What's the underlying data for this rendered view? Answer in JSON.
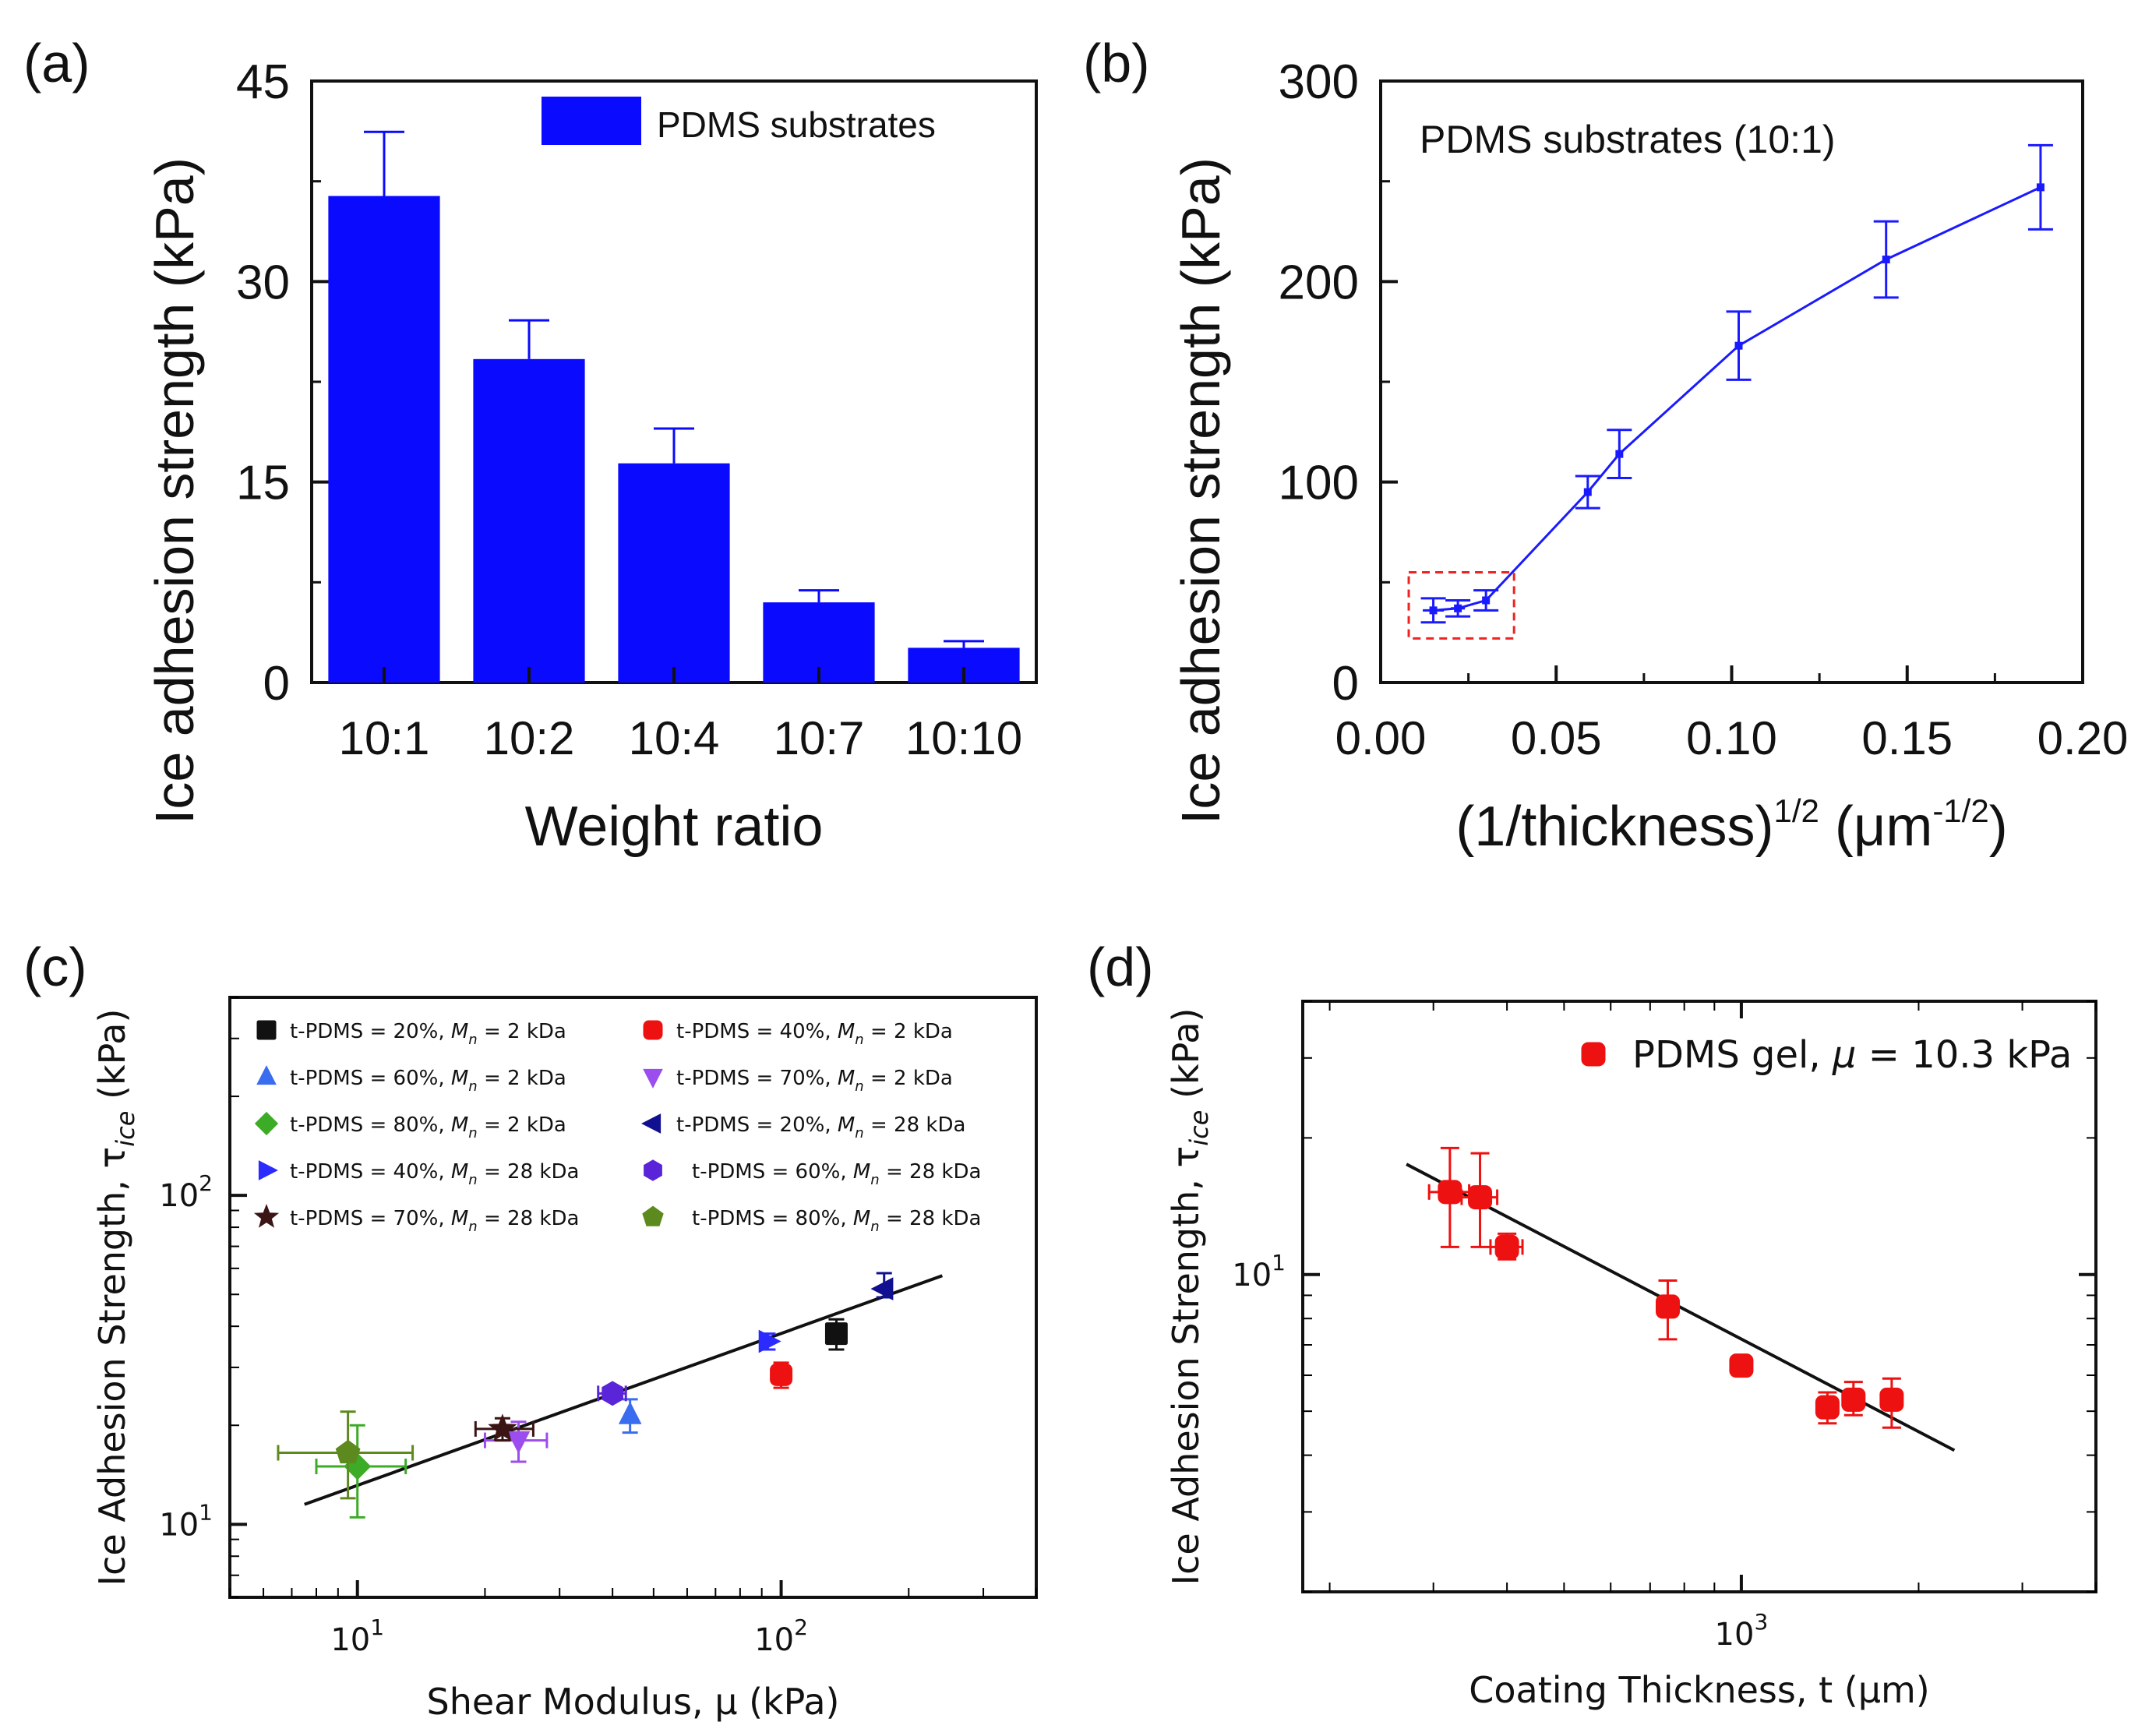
{
  "figure": {
    "panels": [
      "(a)",
      "(b)",
      "(c)",
      "(d)"
    ]
  },
  "chart_data": [
    {
      "id": "a",
      "panel_label": "(a)",
      "type": "bar",
      "title": "",
      "xlabel": "Weight ratio",
      "ylabel": "Ice adhesion strength (kPa)",
      "categories": [
        "10:1",
        "10:2",
        "10:4",
        "10:7",
        "10:10"
      ],
      "values": [
        36.4,
        24.2,
        16.4,
        6.0,
        2.6
      ],
      "errors": [
        4.8,
        2.9,
        2.6,
        0.9,
        0.5
      ],
      "ylim": [
        0,
        45
      ],
      "yticks": [
        0,
        15,
        30,
        45
      ],
      "legend": "PDMS substrates",
      "legend_position": "top-right",
      "color": "#0a0aff"
    },
    {
      "id": "b",
      "panel_label": "(b)",
      "type": "line",
      "title": "",
      "annotation": "PDMS substrates (10:1)",
      "xlabel": "(1/thickness)",
      "xlabel_superscript": "1/2",
      "xlabel_unit": "(μm",
      "xlabel_unit_superscript": "-1/2",
      "xlabel_close": ")",
      "ylabel": "Ice adhesion strength (kPa)",
      "x": [
        0.015,
        0.022,
        0.03,
        0.059,
        0.068,
        0.102,
        0.144,
        0.188
      ],
      "y": [
        36,
        37,
        41,
        95,
        114,
        168,
        211,
        247
      ],
      "yerr": [
        6,
        4,
        5,
        8,
        12,
        17,
        19,
        21
      ],
      "xerr": [
        0.003,
        0.002,
        0.0,
        0.0,
        0.0,
        0.0,
        0.0,
        0.0
      ],
      "xlim": [
        0.0,
        0.2
      ],
      "ylim": [
        0,
        300
      ],
      "xticks": [
        "0.00",
        "0.05",
        "0.10",
        "0.15",
        "0.20"
      ],
      "yticks": [
        0,
        100,
        200,
        300
      ],
      "highlight_box": {
        "x": [
          0.008,
          0.038
        ],
        "y": [
          22,
          55
        ]
      },
      "color": "#1a1aff"
    },
    {
      "id": "c",
      "panel_label": "(c)",
      "type": "scatter",
      "scale": "log-log",
      "xlabel": "Shear Modulus, μ (kPa)",
      "ylabel": "Ice Adhesion Strength, τ",
      "ylabel_sub": "ice",
      "ylabel_unit": " (kPa)",
      "xlim": [
        5,
        400
      ],
      "ylim": [
        6,
        400
      ],
      "xticks": [
        {
          "value": 10,
          "base": "10",
          "exp": "1"
        },
        {
          "value": 100,
          "base": "10",
          "exp": "2"
        }
      ],
      "yticks": [
        {
          "value": 10,
          "base": "10",
          "exp": "1"
        },
        {
          "value": 100,
          "base": "10",
          "exp": "2"
        }
      ],
      "fit_line": {
        "x": [
          7.5,
          240
        ],
        "y": [
          11.5,
          57
        ]
      },
      "series": [
        {
          "name": "t-PDMS = 20%, Mn = 2 kDa",
          "lead": "t-PDMS = 20%, ",
          "var": "M",
          "sub": "n",
          "tail": " = 2 kDa",
          "marker": "square",
          "color": "#111111",
          "x": 135,
          "y": 38,
          "yerr_lo": 34,
          "yerr_hi": 42,
          "xerr_lo": 135,
          "xerr_hi": 135
        },
        {
          "name": "t-PDMS = 40%, Mn = 2 kDa",
          "lead": "t-PDMS = 40%, ",
          "var": "M",
          "sub": "n",
          "tail": " = 2 kDa",
          "marker": "circle",
          "color": "#ee1111",
          "x": 100,
          "y": 28.5,
          "yerr_lo": 26,
          "yerr_hi": 31,
          "xerr_lo": 100,
          "xerr_hi": 100
        },
        {
          "name": "t-PDMS = 60%, Mn = 2 kDa",
          "lead": "t-PDMS = 60%, ",
          "var": "M",
          "sub": "n",
          "tail": " = 2 kDa",
          "marker": "triangle-up",
          "color": "#3a6cf0",
          "x": 44,
          "y": 21.5,
          "yerr_lo": 19,
          "yerr_hi": 24,
          "xerr_lo": 44,
          "xerr_hi": 44
        },
        {
          "name": "t-PDMS = 70%, Mn = 2 kDa",
          "lead": "t-PDMS = 70%, ",
          "var": "M",
          "sub": "n",
          "tail": " = 2 kDa",
          "marker": "triangle-down",
          "color": "#9b4dee",
          "x": 24,
          "y": 18,
          "yerr_lo": 15.5,
          "yerr_hi": 20.5,
          "xerr_lo": 20,
          "xerr_hi": 28
        },
        {
          "name": "t-PDMS = 80%, Mn = 2 kDa",
          "lead": "t-PDMS = 80%, ",
          "var": "M",
          "sub": "n",
          "tail": " = 2 kDa",
          "marker": "diamond",
          "color": "#3cab26",
          "x": 10,
          "y": 15,
          "yerr_lo": 10.5,
          "yerr_hi": 20,
          "xerr_lo": 8,
          "xerr_hi": 13
        },
        {
          "name": "t-PDMS = 20%, Mn = 28 kDa",
          "lead": "t-PDMS = 20%, ",
          "var": "M",
          "sub": "n",
          "tail": " = 28 kDa",
          "marker": "triangle-left",
          "color": "#101090",
          "x": 175,
          "y": 52,
          "yerr_lo": 49,
          "yerr_hi": 58,
          "xerr_lo": 175,
          "xerr_hi": 175
        },
        {
          "name": "t-PDMS = 40%, Mn = 28 kDa",
          "lead": "t-PDMS = 40%, ",
          "var": "M",
          "sub": "n",
          "tail": " = 28 kDa",
          "marker": "triangle-right",
          "color": "#2b2bff",
          "x": 93,
          "y": 36,
          "yerr_lo": 34,
          "yerr_hi": 38,
          "xerr_lo": 93,
          "xerr_hi": 93
        },
        {
          "name": "t-PDMS = 60%, Mn = 28 kDa",
          "lead": "t-PDMS = 60%, ",
          "var": "M",
          "sub": "n",
          "tail": " = 28 kDa",
          "marker": "hexagon",
          "color": "#5a24d8",
          "x": 40,
          "y": 25,
          "yerr_lo": 24,
          "yerr_hi": 26,
          "xerr_lo": 37,
          "xerr_hi": 43
        },
        {
          "name": "t-PDMS = 70%, Mn = 28 kDa",
          "lead": "t-PDMS = 70%, ",
          "var": "M",
          "sub": "n",
          "tail": " = 28 kDa",
          "marker": "star",
          "color": "#3b1414",
          "x": 22,
          "y": 19.5,
          "yerr_lo": 18,
          "yerr_hi": 21,
          "xerr_lo": 19,
          "xerr_hi": 26
        },
        {
          "name": "t-PDMS = 80%, Mn = 28 kDa",
          "lead": "t-PDMS = 80%, ",
          "var": "M",
          "sub": "n",
          "tail": " = 28 kDa",
          "marker": "pentagon",
          "color": "#5d8a1e",
          "x": 9.5,
          "y": 16.5,
          "yerr_lo": 12,
          "yerr_hi": 22,
          "xerr_lo": 6.5,
          "xerr_hi": 13.5
        }
      ]
    },
    {
      "id": "d",
      "panel_label": "(d)",
      "type": "scatter",
      "scale": "log-log",
      "xlabel": "Coating Thickness, t (μm)",
      "ylabel": "Ice Adhesion Strength, τ",
      "ylabel_sub": "ice",
      "ylabel_unit": " (kPa)",
      "xlim": [
        180,
        4000
      ],
      "ylim": [
        2,
        40
      ],
      "xticks": [
        {
          "value": 1000,
          "base": "10",
          "exp": "3"
        }
      ],
      "yticks": [
        {
          "value": 10,
          "base": "10",
          "exp": "1"
        }
      ],
      "legend": "PDMS gel, μ = 10.3 kPa",
      "legend_lead": "PDMS gel, ",
      "legend_var": "μ",
      "legend_tail": " = 10.3 kPa",
      "color": "#ee1111",
      "x": [
        320,
        360,
        400,
        750,
        1000,
        1400,
        1550,
        1800
      ],
      "y": [
        15.2,
        14.8,
        11.5,
        8.5,
        6.3,
        5.1,
        5.3,
        5.3
      ],
      "yerr_lo": [
        11.5,
        11.5,
        10.8,
        7.2,
        6.1,
        4.7,
        4.9,
        4.6
      ],
      "yerr_hi": [
        19,
        18.5,
        12.3,
        9.7,
        6.5,
        5.5,
        5.8,
        5.9
      ],
      "xerr_lo": [
        295,
        335,
        375,
        730,
        985,
        1370,
        1510,
        1760
      ],
      "xerr_hi": [
        345,
        385,
        425,
        770,
        1015,
        1430,
        1590,
        1840
      ],
      "fit_line": {
        "x": [
          270,
          2300
        ],
        "y": [
          17.5,
          4.1
        ]
      }
    }
  ]
}
